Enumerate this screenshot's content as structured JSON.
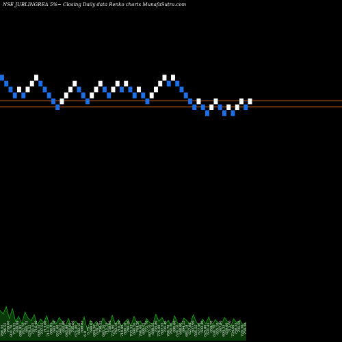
{
  "header": {
    "title": "NSE JUBLINGREA 5%~  Closing Daily data  Renko  charts MunafaSutra.com"
  },
  "colors": {
    "background": "#000000",
    "up_brick": "#ffffff",
    "down_brick": "#1e6fe6",
    "reference_line": "#c8641e",
    "volume_fill": "#0a3a0a",
    "volume_line": "#1aa61a"
  },
  "chart_data": {
    "type": "renko",
    "ylim": [
      0,
      45
    ],
    "bricks": [
      {
        "dir": "down",
        "level": 36
      },
      {
        "dir": "down",
        "level": 35
      },
      {
        "dir": "down",
        "level": 34
      },
      {
        "dir": "down",
        "level": 33
      },
      {
        "dir": "up",
        "level": 34
      },
      {
        "dir": "down",
        "level": 33
      },
      {
        "dir": "up",
        "level": 34
      },
      {
        "dir": "up",
        "level": 35
      },
      {
        "dir": "up",
        "level": 36
      },
      {
        "dir": "down",
        "level": 35
      },
      {
        "dir": "down",
        "level": 34
      },
      {
        "dir": "down",
        "level": 33
      },
      {
        "dir": "down",
        "level": 32
      },
      {
        "dir": "down",
        "level": 31
      },
      {
        "dir": "up",
        "level": 32
      },
      {
        "dir": "up",
        "level": 33
      },
      {
        "dir": "up",
        "level": 34
      },
      {
        "dir": "up",
        "level": 35
      },
      {
        "dir": "down",
        "level": 34
      },
      {
        "dir": "down",
        "level": 33
      },
      {
        "dir": "down",
        "level": 32
      },
      {
        "dir": "up",
        "level": 33
      },
      {
        "dir": "up",
        "level": 34
      },
      {
        "dir": "up",
        "level": 35
      },
      {
        "dir": "down",
        "level": 34
      },
      {
        "dir": "down",
        "level": 33
      },
      {
        "dir": "up",
        "level": 34
      },
      {
        "dir": "up",
        "level": 35
      },
      {
        "dir": "down",
        "level": 34
      },
      {
        "dir": "up",
        "level": 35
      },
      {
        "dir": "down",
        "level": 34
      },
      {
        "dir": "down",
        "level": 33
      },
      {
        "dir": "up",
        "level": 34
      },
      {
        "dir": "down",
        "level": 33
      },
      {
        "dir": "down",
        "level": 32
      },
      {
        "dir": "up",
        "level": 33
      },
      {
        "dir": "up",
        "level": 34
      },
      {
        "dir": "up",
        "level": 35
      },
      {
        "dir": "up",
        "level": 36
      },
      {
        "dir": "down",
        "level": 35
      },
      {
        "dir": "up",
        "level": 36
      },
      {
        "dir": "down",
        "level": 35
      },
      {
        "dir": "down",
        "level": 34
      },
      {
        "dir": "down",
        "level": 33
      },
      {
        "dir": "down",
        "level": 32
      },
      {
        "dir": "down",
        "level": 31
      },
      {
        "dir": "up",
        "level": 32
      },
      {
        "dir": "down",
        "level": 31
      },
      {
        "dir": "down",
        "level": 30
      },
      {
        "dir": "up",
        "level": 31
      },
      {
        "dir": "up",
        "level": 32
      },
      {
        "dir": "down",
        "level": 31
      },
      {
        "dir": "down",
        "level": 30
      },
      {
        "dir": "up",
        "level": 31
      },
      {
        "dir": "down",
        "level": 30
      },
      {
        "dir": "up",
        "level": 31
      },
      {
        "dir": "up",
        "level": 32
      },
      {
        "dir": "down",
        "level": 31
      },
      {
        "dir": "up",
        "level": 32
      }
    ],
    "reference_lines": [
      32.6,
      31.6
    ],
    "volume": [
      55,
      48,
      62,
      40,
      58,
      35,
      44,
      30,
      52,
      41,
      36,
      47,
      28,
      39,
      33,
      45,
      25,
      38,
      30,
      42,
      34,
      27,
      40,
      22,
      36,
      31,
      26,
      43,
      20,
      37,
      29,
      35,
      24,
      41,
      33,
      28,
      46,
      30,
      38,
      26,
      34,
      39,
      27,
      44,
      31,
      36,
      25,
      40,
      33,
      29,
      48,
      35,
      42,
      30,
      37,
      26,
      45,
      32,
      28,
      41,
      36,
      30,
      47,
      34,
      27,
      39,
      31,
      43,
      25,
      38,
      33,
      29,
      42,
      35,
      26,
      40,
      32,
      37,
      28,
      34
    ],
    "volume_labels": [
      "766.55",
      "746.55",
      "759.00",
      "801.70",
      "754.35",
      "838.88",
      "686.95",
      "762.70",
      "665.75",
      "678.55",
      "741.55",
      "716.40",
      "699.25",
      "707.55",
      "713.60",
      "711.25",
      "680.05",
      "683.10",
      "651.60",
      "646.55",
      "650.90",
      "645.80",
      "640.00",
      "705.60",
      "671.80",
      "682.15",
      "698.85",
      "6.0",
      "6.75",
      "648.05",
      "684.30",
      "678.20",
      "706.35",
      "683.50",
      "711.25",
      "738.80",
      "725.90",
      "743.10",
      "710.30",
      "718.80",
      "699.10",
      "740.20",
      "703.55",
      "690.20",
      "744.20",
      "796.00",
      "699.15",
      "772.70",
      "697.10",
      "688.55",
      "705.80",
      "776.00",
      "697.55",
      "701.46",
      "766.70",
      "760.70",
      "690.60",
      "676.10",
      "648.00",
      "694.25",
      "681.18",
      "627.60",
      "607.90",
      "595.55",
      "627.50",
      "602.40",
      "625.80",
      "631.45",
      "659.20",
      "636.70",
      "655.10",
      "647.80",
      "694.35",
      "659.60",
      "712.70",
      "734.60",
      "758.35",
      "701.50",
      "720.30",
      "759.30"
    ]
  }
}
